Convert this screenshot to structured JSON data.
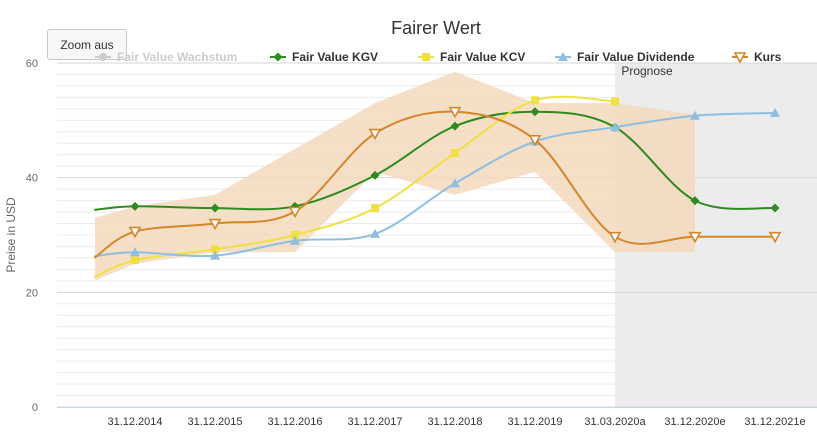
{
  "zoom_button": {
    "label": "Zoom aus"
  },
  "chart_data": {
    "type": "line",
    "title": "Fairer Wert",
    "xlabel": "",
    "ylabel": "Preise in USD",
    "ylim": [
      0,
      60
    ],
    "yticks": [
      0,
      20,
      40,
      60
    ],
    "categories": [
      "31.12.2014",
      "31.12.2015",
      "31.12.2016",
      "31.12.2017",
      "31.12.2018",
      "31.12.2019",
      "31.03.2020a",
      "31.12.2020e",
      "31.12.2021e"
    ],
    "forecast_label": "Prognose",
    "forecast_start_category": "31.03.2020a",
    "legend_position": "top",
    "grid": true,
    "series": [
      {
        "name": "Fair Value Wachstum",
        "color": "#cccccc",
        "marker": "circle",
        "hidden": true,
        "x": [],
        "values": []
      },
      {
        "name": "Fair Value KGV",
        "color": "#2e8b1f",
        "marker": "diamond",
        "x": [
          -0.5,
          0,
          1,
          2,
          3,
          4,
          5,
          6,
          7,
          8
        ],
        "values": [
          34.4,
          35.0,
          34.7,
          35.0,
          40.4,
          49.0,
          51.5,
          48.8,
          36.0,
          34.7
        ]
      },
      {
        "name": "Fair Value KCV",
        "color": "#f0e040",
        "marker": "square",
        "x": [
          -0.5,
          0,
          1,
          2,
          3,
          4,
          5,
          6
        ],
        "values": [
          22.7,
          25.6,
          27.5,
          30.0,
          34.7,
          44.3,
          53.5,
          53.3
        ]
      },
      {
        "name": "Fair Value Dividende",
        "color": "#8fbfe0",
        "marker": "triangle",
        "x": [
          -0.5,
          0,
          1,
          2,
          3,
          4,
          5,
          6,
          7,
          8
        ],
        "values": [
          26.3,
          27.0,
          26.4,
          29.0,
          30.2,
          39.0,
          46.3,
          48.8,
          50.8,
          51.3
        ]
      },
      {
        "name": "Kurs",
        "color": "#d4862a",
        "marker": "triangle-down",
        "x": [
          -0.5,
          0,
          1,
          2,
          3,
          4,
          5,
          6,
          7,
          8
        ],
        "values": [
          26.1,
          30.6,
          32.0,
          34.1,
          47.7,
          51.5,
          46.6,
          29.7,
          29.7,
          29.7
        ]
      }
    ],
    "range_band": {
      "color": "#f3d9bd",
      "x": [
        -0.5,
        0,
        1,
        2,
        3,
        4,
        5,
        6,
        7
      ],
      "low": [
        22.0,
        25.0,
        27.0,
        27.0,
        41.0,
        37.0,
        41.0,
        27.0,
        27.0
      ],
      "high": [
        33.0,
        35.0,
        37.0,
        45.0,
        53.0,
        58.5,
        53.0,
        53.0,
        51.0
      ]
    }
  }
}
